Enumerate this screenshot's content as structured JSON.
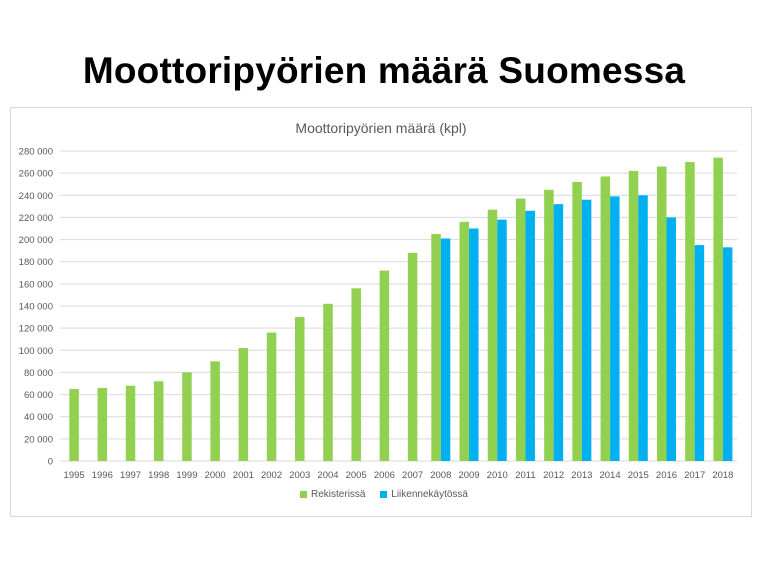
{
  "slide": {
    "title": "Moottoripyörien määrä Suomessa"
  },
  "chart_data": {
    "type": "bar",
    "title": "Moottoripyörien määrä (kpl)",
    "xlabel": "",
    "ylabel": "",
    "ylim": [
      0,
      280000
    ],
    "yticks": [
      0,
      20000,
      40000,
      60000,
      80000,
      100000,
      120000,
      140000,
      160000,
      180000,
      200000,
      220000,
      240000,
      260000,
      280000
    ],
    "ytick_labels": [
      "0",
      "20 000",
      "40 000",
      "60 000",
      "80 000",
      "100 000",
      "120 000",
      "140 000",
      "160 000",
      "180 000",
      "200 000",
      "220 000",
      "240 000",
      "260 000",
      "280 000"
    ],
    "grid": true,
    "legend_position": "bottom",
    "categories": [
      "1995",
      "1996",
      "1997",
      "1998",
      "1999",
      "2000",
      "2001",
      "2002",
      "2003",
      "2004",
      "2005",
      "2006",
      "2007",
      "2008",
      "2009",
      "2010",
      "2011",
      "2012",
      "2013",
      "2014",
      "2015",
      "2016",
      "2017",
      "2018"
    ],
    "series": [
      {
        "name": "Rekisterissä",
        "color": "#92d050",
        "values": [
          65000,
          66000,
          68000,
          72000,
          80000,
          90000,
          102000,
          116000,
          130000,
          142000,
          156000,
          172000,
          188000,
          205000,
          216000,
          227000,
          237000,
          245000,
          252000,
          257000,
          262000,
          266000,
          270000,
          274000
        ]
      },
      {
        "name": "Liikennekäytössä",
        "color": "#00b0f0",
        "values": [
          null,
          null,
          null,
          null,
          null,
          null,
          null,
          null,
          null,
          null,
          null,
          null,
          null,
          201000,
          210000,
          218000,
          226000,
          232000,
          236000,
          239000,
          240000,
          220000,
          195000,
          193000
        ]
      }
    ]
  },
  "colors": {
    "grid": "#d9d9d9",
    "axis_text": "#595959",
    "title_text": "#595959"
  }
}
